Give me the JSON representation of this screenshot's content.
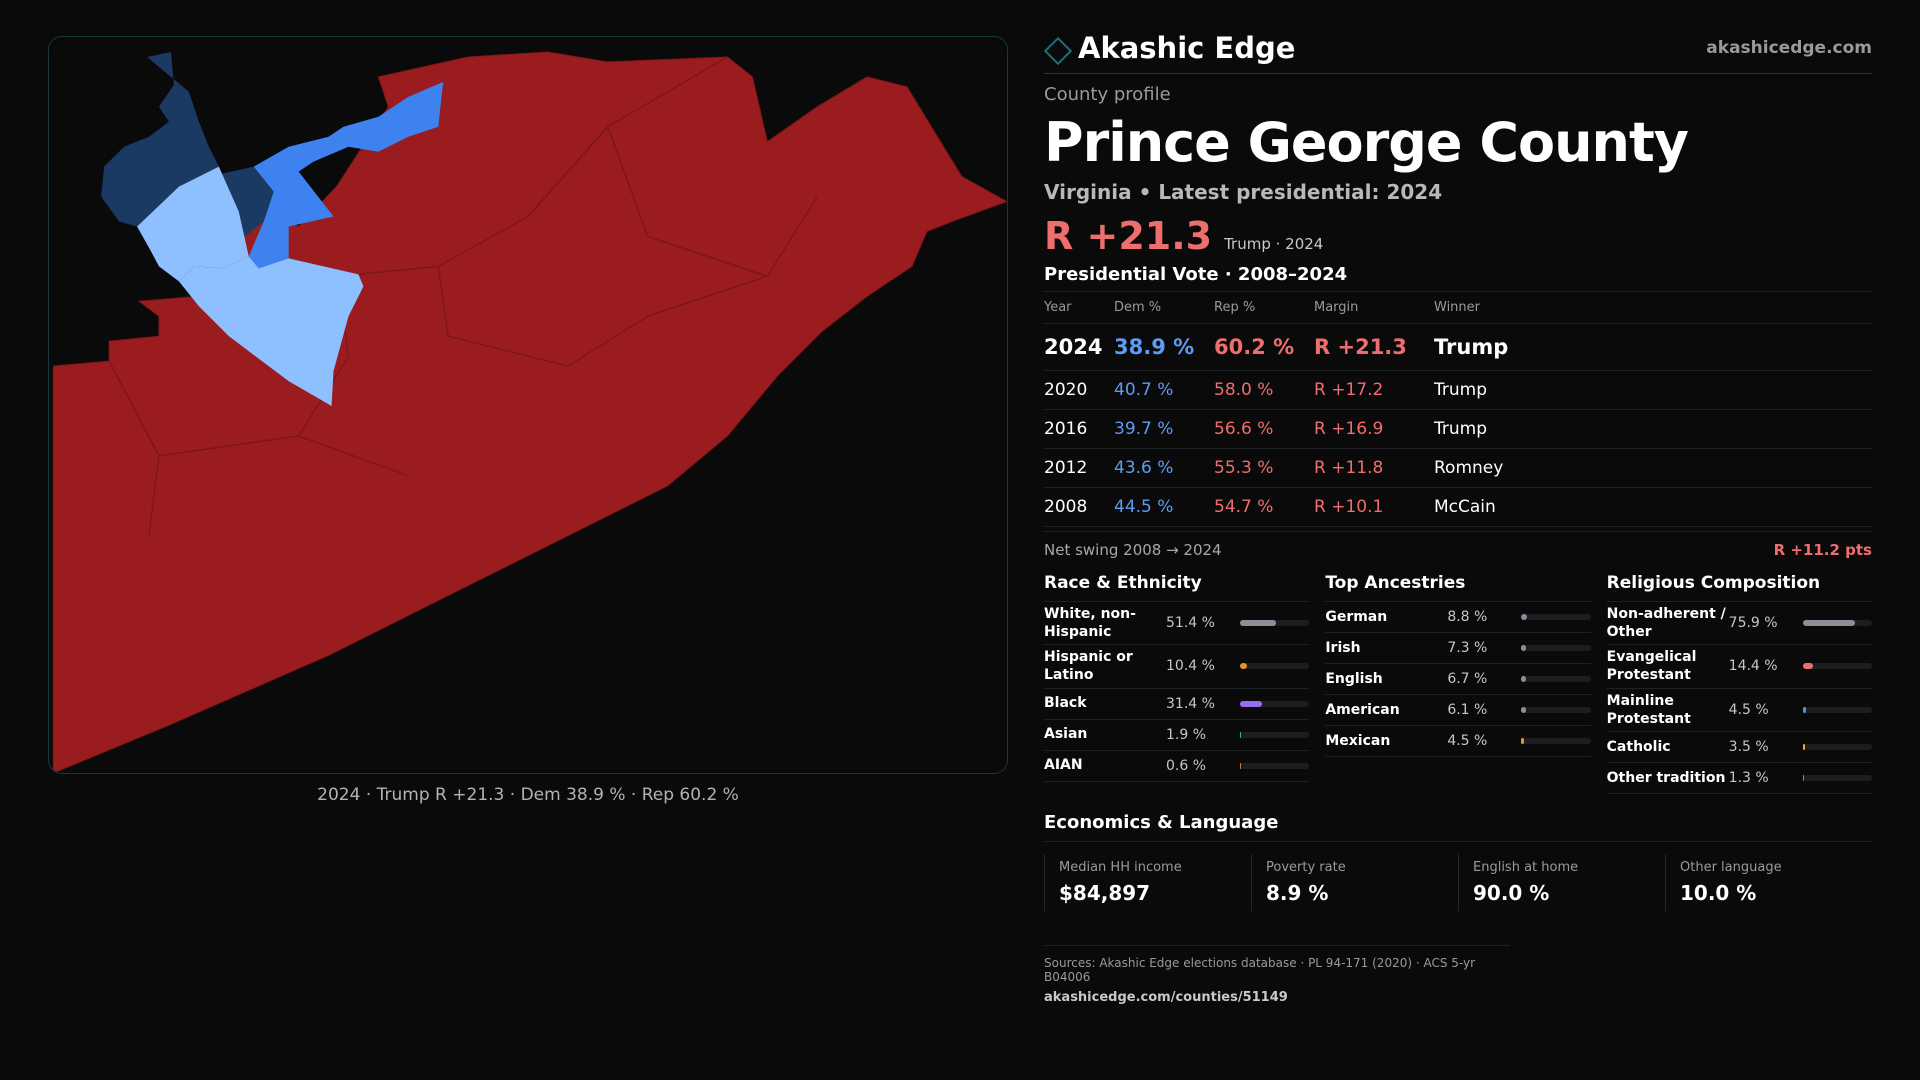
{
  "brand": {
    "name": "Akashic Edge",
    "site": "akashicedge.com"
  },
  "profile": {
    "eyebrow": "County profile",
    "title": "Prince George County",
    "subline": "Virginia • Latest presidential: 2024",
    "margin_big": "R +21.3",
    "margin_sub": "Trump · 2024"
  },
  "map": {
    "caption": "2024 · Trump R +21.3 · Dem 38.9 % · Rep 60.2 %",
    "colors": {
      "rep": "#9b1c1f",
      "dem_light": "#8ec0ff",
      "dem_mid": "#3e82f0",
      "dem_dark": "#1b3a63"
    }
  },
  "votes": {
    "title": "Presidential Vote · 2008–2024",
    "headers": {
      "year": "Year",
      "dem": "Dem %",
      "rep": "Rep %",
      "margin": "Margin",
      "winner": "Winner"
    },
    "rows": [
      {
        "year": "2024",
        "dem": "38.9 %",
        "rep": "60.2 %",
        "margin": "R +21.3",
        "winner": "Trump"
      },
      {
        "year": "2020",
        "dem": "40.7 %",
        "rep": "58.0 %",
        "margin": "R +17.2",
        "winner": "Trump"
      },
      {
        "year": "2016",
        "dem": "39.7 %",
        "rep": "56.6 %",
        "margin": "R +16.9",
        "winner": "Trump"
      },
      {
        "year": "2012",
        "dem": "43.6 %",
        "rep": "55.3 %",
        "margin": "R +11.8",
        "winner": "Romney"
      },
      {
        "year": "2008",
        "dem": "44.5 %",
        "rep": "54.7 %",
        "margin": "R +10.1",
        "winner": "McCain"
      }
    ],
    "swing_label": "Net swing 2008 → 2024",
    "swing_value": "R +11.2 pts"
  },
  "race": {
    "title": "Race & Ethnicity",
    "items": [
      {
        "label": "White, non-Hispanic",
        "value": "51.4 %",
        "pct": 51.4,
        "color": "#8b8f99"
      },
      {
        "label": "Hispanic or Latino",
        "value": "10.4 %",
        "pct": 10.4,
        "color": "#e8902a"
      },
      {
        "label": "Black",
        "value": "31.4 %",
        "pct": 31.4,
        "color": "#9a6cf0"
      },
      {
        "label": "Asian",
        "value": "1.9 %",
        "pct": 1.9,
        "color": "#2fb39a"
      },
      {
        "label": "AIAN",
        "value": "0.6 %",
        "pct": 0.6,
        "color": "#d07a3a"
      }
    ]
  },
  "ancestry": {
    "title": "Top Ancestries",
    "items": [
      {
        "label": "German",
        "value": "8.8 %",
        "pct": 8.8,
        "color": "#8b8f99"
      },
      {
        "label": "Irish",
        "value": "7.3 %",
        "pct": 7.3,
        "color": "#8b8f99"
      },
      {
        "label": "English",
        "value": "6.7 %",
        "pct": 6.7,
        "color": "#8b8f99"
      },
      {
        "label": "American",
        "value": "6.1 %",
        "pct": 6.1,
        "color": "#8b8f99"
      },
      {
        "label": "Mexican",
        "value": "4.5 %",
        "pct": 4.5,
        "color": "#e8902a"
      }
    ]
  },
  "religion": {
    "title": "Religious Composition",
    "items": [
      {
        "label": "Non-adherent / Other",
        "value": "75.9 %",
        "pct": 75.9,
        "color": "#8b8f99"
      },
      {
        "label": "Evangelical Protestant",
        "value": "14.4 %",
        "pct": 14.4,
        "color": "#ee6e6e"
      },
      {
        "label": "Mainline Protestant",
        "value": "4.5 %",
        "pct": 4.5,
        "color": "#4f8ff0"
      },
      {
        "label": "Catholic",
        "value": "3.5 %",
        "pct": 3.5,
        "color": "#e8b02a"
      },
      {
        "label": "Other tradition",
        "value": "1.3 %",
        "pct": 1.3,
        "color": "#8b8f99"
      }
    ]
  },
  "economics": {
    "title": "Economics & Language",
    "cards": [
      {
        "label": "Median HH income",
        "value": "$84,897"
      },
      {
        "label": "Poverty rate",
        "value": "8.9 %"
      },
      {
        "label": "English at home",
        "value": "90.0 %"
      },
      {
        "label": "Other language",
        "value": "10.0 %"
      }
    ]
  },
  "sources": {
    "text": "Sources: Akashic Edge elections database · PL 94-171 (2020) · ACS 5-yr B04006",
    "url": "akashicedge.com/counties/51149"
  }
}
